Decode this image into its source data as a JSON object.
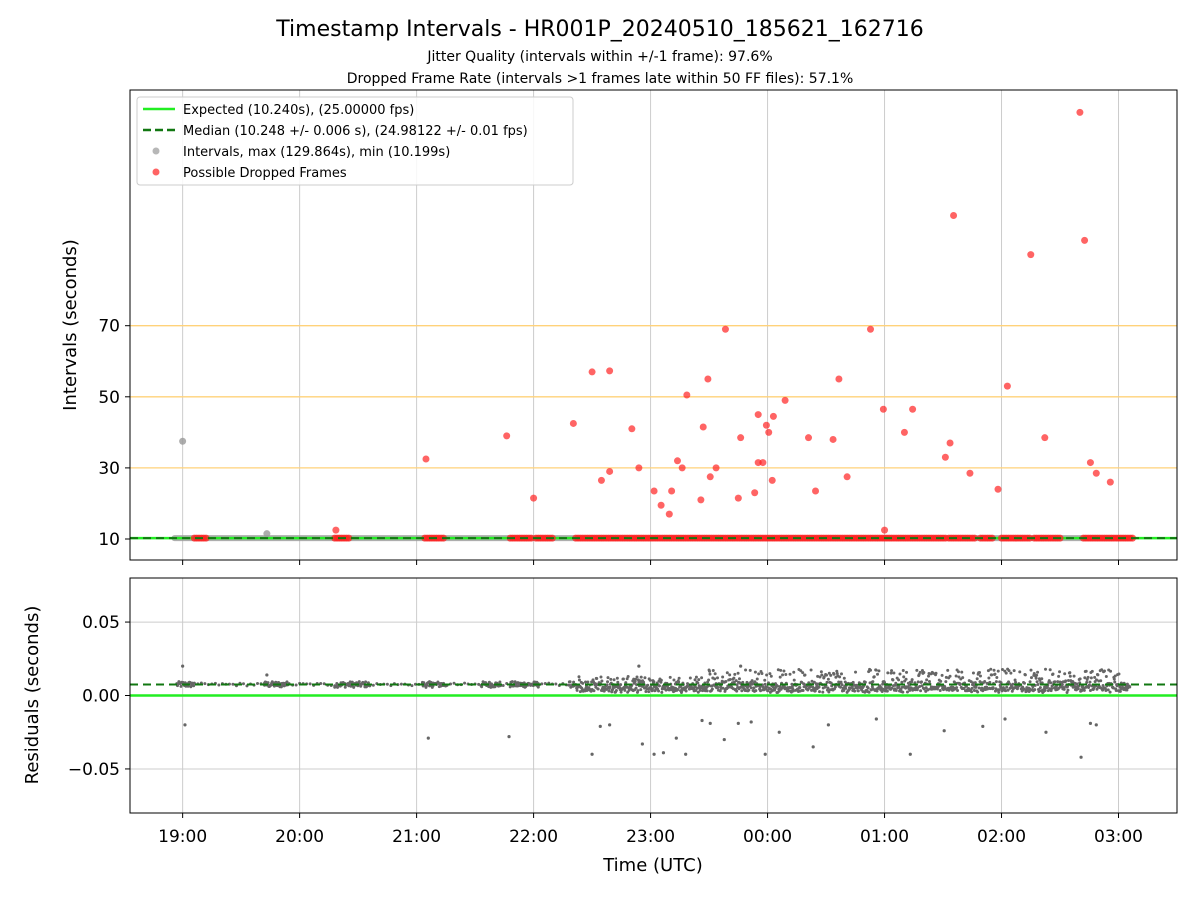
{
  "header": {
    "title": "Timestamp Intervals - HR001P_20240510_185621_162716",
    "subtitle1": "Jitter Quality (intervals within +/-1 frame): 97.6%",
    "subtitle2": "Dropped Frame Rate (intervals >1 frames late within 50 FF files): 57.1%"
  },
  "colors": {
    "expected": "#22ee22",
    "median": "#117711",
    "interval": "#999999",
    "dropped": "#ff2222",
    "threshold": "#ffd27a",
    "grid": "#cccccc",
    "residual": "#666666"
  },
  "chart_data": [
    {
      "type": "scatter",
      "ylabel": "Intervals (seconds)",
      "yticks": [
        "10",
        "30",
        "50",
        "70"
      ],
      "ytick_values": [
        10,
        30,
        50,
        70
      ],
      "threshold_lines": [
        30,
        50,
        70
      ],
      "expected": 10.24,
      "median": 10.248,
      "legend": {
        "placement": "top-left",
        "entries": [
          "Expected (10.240s), (25.00000 fps)",
          "Median (10.248 +/- 0.006 s), (24.98122 +/- 0.01 fps)",
          "Intervals, max (129.864s), min (10.199s)",
          "Possible Dropped Frames"
        ]
      },
      "dropped_frames": [
        [
          20.31,
          12.5
        ],
        [
          21.08,
          32.5
        ],
        [
          21.77,
          39
        ],
        [
          22.0,
          21.5
        ],
        [
          22.34,
          42.5
        ],
        [
          22.5,
          57
        ],
        [
          22.58,
          26.5
        ],
        [
          22.65,
          57.3
        ],
        [
          22.65,
          29
        ],
        [
          22.84,
          41
        ],
        [
          22.9,
          30
        ],
        [
          23.03,
          23.5
        ],
        [
          23.09,
          19.5
        ],
        [
          23.16,
          17
        ],
        [
          23.18,
          23.5
        ],
        [
          23.23,
          32
        ],
        [
          23.27,
          30
        ],
        [
          23.31,
          50.5
        ],
        [
          23.43,
          21
        ],
        [
          23.45,
          41.5
        ],
        [
          23.49,
          55
        ],
        [
          23.51,
          27.5
        ],
        [
          23.56,
          30
        ],
        [
          23.64,
          69
        ],
        [
          23.75,
          21.5
        ],
        [
          23.77,
          38.5
        ],
        [
          23.89,
          23
        ],
        [
          23.92,
          45
        ],
        [
          23.92,
          31.5
        ],
        [
          23.96,
          31.5
        ],
        [
          23.99,
          42
        ],
        [
          24.01,
          40
        ],
        [
          24.05,
          44.5
        ],
        [
          24.04,
          26.5
        ],
        [
          24.15,
          49
        ],
        [
          24.35,
          38.5
        ],
        [
          24.41,
          23.5
        ],
        [
          24.56,
          38
        ],
        [
          24.61,
          55
        ],
        [
          24.68,
          27.5
        ],
        [
          24.88,
          69
        ],
        [
          24.99,
          46.5
        ],
        [
          25.0,
          12.5
        ],
        [
          25.17,
          40
        ],
        [
          25.24,
          46.5
        ],
        [
          25.52,
          33
        ],
        [
          25.56,
          37
        ],
        [
          25.59,
          101
        ],
        [
          25.73,
          28.5
        ],
        [
          25.97,
          24
        ],
        [
          26.05,
          53
        ],
        [
          26.25,
          90
        ],
        [
          26.37,
          38.5
        ],
        [
          26.67,
          130
        ],
        [
          26.71,
          94
        ],
        [
          26.76,
          31.5
        ],
        [
          26.81,
          28.5
        ],
        [
          26.93,
          26
        ]
      ],
      "dropped_runs": [
        [
          19.1,
          19.2
        ],
        [
          20.3,
          20.42
        ],
        [
          21.07,
          21.24
        ],
        [
          21.8,
          21.98
        ],
        [
          22.02,
          22.17
        ],
        [
          22.36,
          25.52
        ],
        [
          25.55,
          25.77
        ],
        [
          25.82,
          25.93
        ],
        [
          26.0,
          26.24
        ],
        [
          26.28,
          26.5
        ],
        [
          26.7,
          27.12
        ]
      ],
      "outliers": [
        [
          19.0,
          37.5
        ],
        [
          19.72,
          11.5
        ]
      ]
    },
    {
      "type": "scatter",
      "xlabel": "Time (UTC)",
      "ylabel": "Residuals (seconds)",
      "yticks": [
        "0.05",
        "0.00",
        "−0.05"
      ],
      "ytick_values": [
        0.05,
        0.0,
        -0.05
      ],
      "ylim": [
        -0.08,
        0.08
      ],
      "xticks": [
        "19:00",
        "20:00",
        "21:00",
        "22:00",
        "23:00",
        "00:00",
        "01:00",
        "02:00",
        "03:00"
      ],
      "xtick_values": [
        19,
        20,
        21,
        22,
        23,
        24,
        25,
        26,
        27
      ],
      "xlim": [
        18.55,
        27.5
      ],
      "expected_residual": 0.0,
      "median_residual": 0.0075,
      "negative_outliers": [
        [
          19.02,
          -0.02
        ],
        [
          21.1,
          -0.029
        ],
        [
          21.79,
          -0.028
        ],
        [
          22.5,
          -0.04
        ],
        [
          22.57,
          -0.021
        ],
        [
          22.65,
          -0.02
        ],
        [
          22.93,
          -0.033
        ],
        [
          23.03,
          -0.04
        ],
        [
          23.11,
          -0.039
        ],
        [
          23.22,
          -0.029
        ],
        [
          23.3,
          -0.04
        ],
        [
          23.44,
          -0.017
        ],
        [
          23.51,
          -0.019
        ],
        [
          23.63,
          -0.03
        ],
        [
          23.75,
          -0.019
        ],
        [
          23.86,
          -0.018
        ],
        [
          23.98,
          -0.04
        ],
        [
          24.1,
          -0.025
        ],
        [
          24.39,
          -0.035
        ],
        [
          24.52,
          -0.02
        ],
        [
          24.93,
          -0.016
        ],
        [
          25.22,
          -0.04
        ],
        [
          25.51,
          -0.024
        ],
        [
          25.84,
          -0.021
        ],
        [
          26.03,
          -0.016
        ],
        [
          26.38,
          -0.025
        ],
        [
          26.68,
          -0.042
        ],
        [
          26.76,
          -0.019
        ],
        [
          26.81,
          -0.02
        ]
      ]
    }
  ]
}
